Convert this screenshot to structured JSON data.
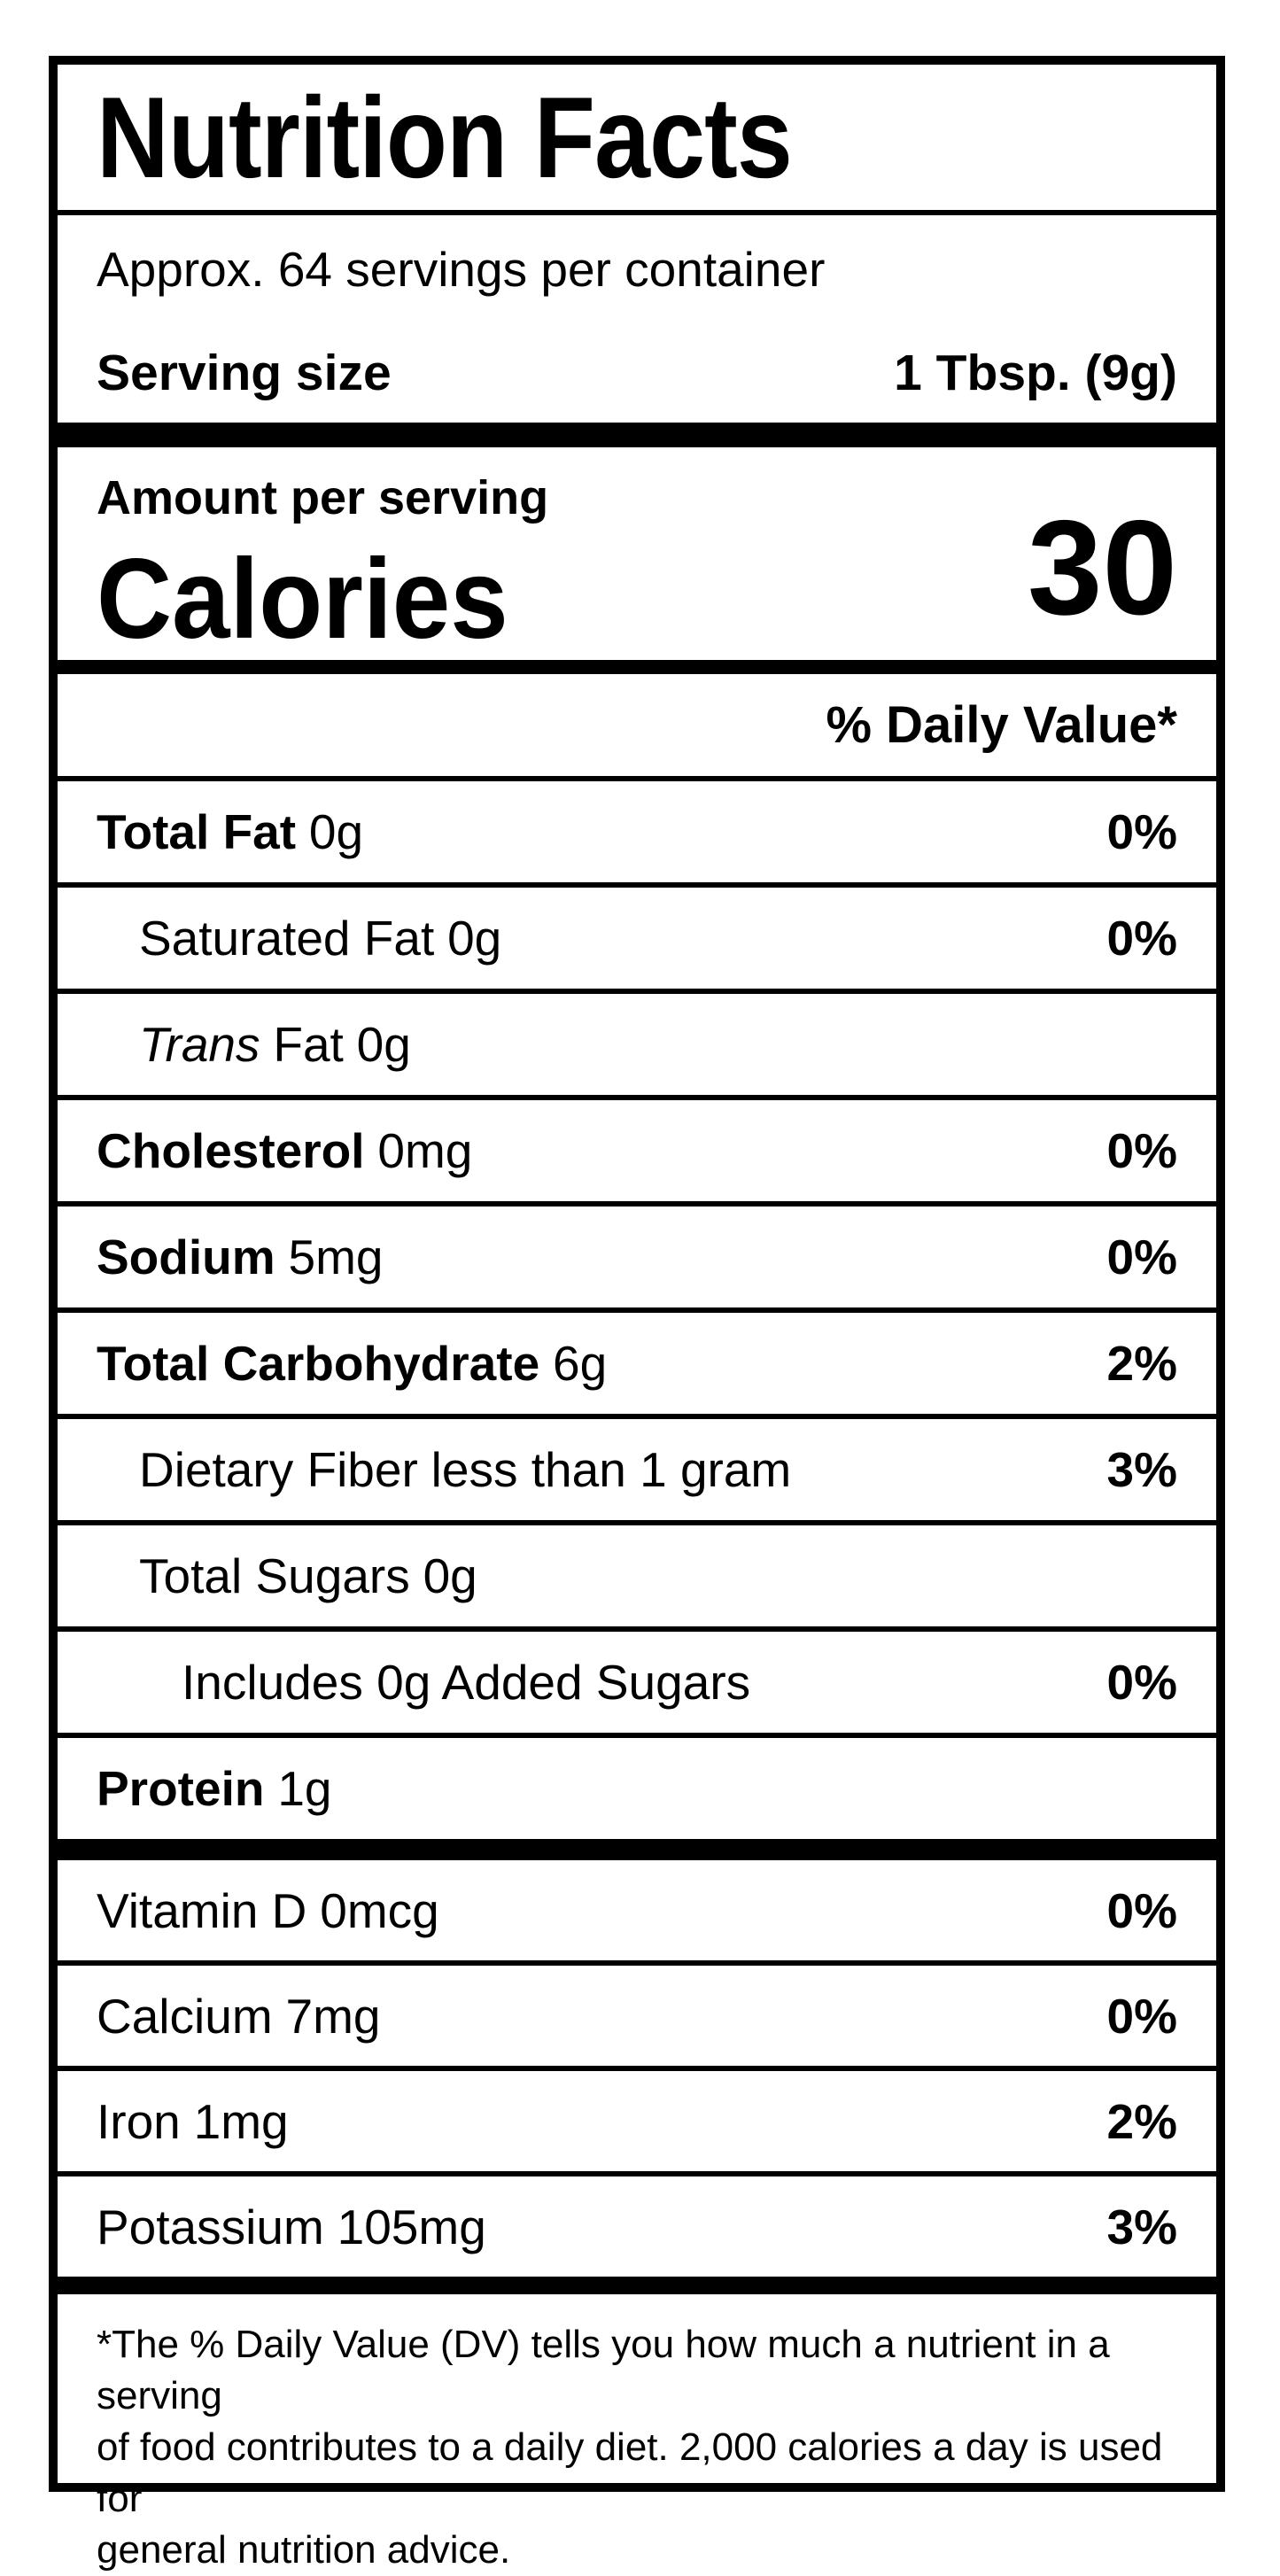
{
  "label": {
    "title": "Nutrition Facts",
    "servings_per_container": "Approx. 64 servings per container",
    "serving_size": {
      "label": "Serving size",
      "value": "1 Tbsp. (9g)"
    },
    "calories": {
      "header": "Amount per serving",
      "label": "Calories",
      "value": "30"
    },
    "daily_value_header": "% Daily Value*",
    "nutrients": [
      {
        "name": "Total Fat",
        "amount": "0g",
        "dv": "0%"
      },
      {
        "name": "Saturated Fat",
        "amount": "0g",
        "dv": "0%"
      },
      {
        "name_italic": "Trans",
        "name": "Fat",
        "amount": "0g",
        "dv": ""
      },
      {
        "name": "Cholesterol",
        "amount": "0mg",
        "dv": "0%"
      },
      {
        "name": "Sodium",
        "amount": "5mg",
        "dv": "0%"
      },
      {
        "name": "Total Carbohydrate",
        "amount": "6g",
        "dv": "2%"
      },
      {
        "name": "Dietary Fiber",
        "amount": "less than 1 gram",
        "dv": "3%"
      },
      {
        "name": "Total Sugars",
        "amount": "0g",
        "dv": ""
      },
      {
        "name": "Includes 0g Added Sugars",
        "amount": "",
        "dv": "0%"
      },
      {
        "name": "Protein",
        "amount": "1g",
        "dv": ""
      }
    ],
    "vitamins": [
      {
        "name": "Vitamin D",
        "amount": "0mcg",
        "dv": "0%"
      },
      {
        "name": "Calcium",
        "amount": "7mg",
        "dv": "0%"
      },
      {
        "name": "Iron",
        "amount": "1mg",
        "dv": "2%"
      },
      {
        "name": "Potassium",
        "amount": "105mg",
        "dv": "3%"
      }
    ],
    "footnote_lines": [
      "*The % Daily Value (DV) tells you how much a nutrient in a serving",
      "of food contributes to a daily diet. 2,000 calories a day is used for",
      "general nutrition advice."
    ],
    "colors": {
      "text": "#000000",
      "background": "#ffffff"
    }
  }
}
